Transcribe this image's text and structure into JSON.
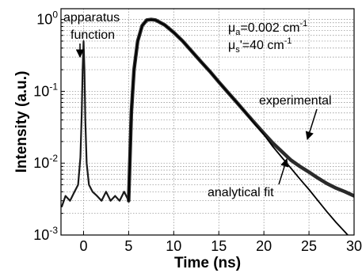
{
  "chart_data": {
    "type": "line",
    "xlabel": "Time (ns)",
    "ylabel": "Intensity (a.u.)",
    "xlim": [
      -2.5,
      30
    ],
    "ylim": [
      0.001,
      1.5
    ],
    "yscale": "log",
    "grid": "dotted",
    "x_ticks": [
      0,
      5,
      10,
      15,
      20,
      25,
      30
    ],
    "x_tick_labels": [
      "0",
      "5",
      "10",
      "15",
      "20",
      "25",
      "30"
    ],
    "y_ticks": [
      0.001,
      0.01,
      0.1,
      1
    ],
    "y_tick_labels": [
      {
        "base": "10",
        "exp": "-3"
      },
      {
        "base": "10",
        "exp": "-2"
      },
      {
        "base": "10",
        "exp": "-1"
      },
      {
        "base": "10",
        "exp": "0"
      }
    ],
    "parameters": {
      "mua": {
        "sym": "μ",
        "sub": "a",
        "text": "=0.002 cm",
        "exp": "-1"
      },
      "mus": {
        "sym": "μ",
        "sub": "s",
        "text": "'=40 cm",
        "exp": "-1"
      }
    },
    "annotations": {
      "apparatus_line1": "apparatus",
      "apparatus_line2": "function",
      "experimental": "experimental",
      "analytical_fit": "analytical fit"
    },
    "series": [
      {
        "role": "apparatus function",
        "x": [
          -2.4,
          -2.0,
          -1.5,
          -1.0,
          -0.6,
          -0.35,
          -0.2,
          -0.1,
          0,
          0.1,
          0.2,
          0.35,
          0.6,
          1.0,
          1.5,
          2.0,
          2.5,
          3.0,
          3.5,
          4.0,
          4.5,
          5.0
        ],
        "y": [
          0.0025,
          0.0035,
          0.003,
          0.004,
          0.005,
          0.012,
          0.05,
          0.2,
          0.5,
          0.2,
          0.04,
          0.01,
          0.005,
          0.004,
          0.0035,
          0.003,
          0.004,
          0.003,
          0.0035,
          0.003,
          0.004,
          0.003
        ]
      },
      {
        "role": "experimental",
        "x": [
          5.0,
          5.3,
          5.6,
          6.0,
          6.5,
          7.0,
          7.5,
          8.0,
          9,
          10,
          11,
          12,
          13,
          14,
          15,
          16,
          17,
          18,
          19,
          20,
          21,
          22,
          23,
          24,
          25,
          26,
          27,
          28,
          29,
          30
        ],
        "y": [
          0.003,
          0.05,
          0.2,
          0.5,
          0.82,
          0.98,
          1.0,
          0.98,
          0.84,
          0.66,
          0.5,
          0.36,
          0.26,
          0.19,
          0.135,
          0.097,
          0.07,
          0.05,
          0.036,
          0.026,
          0.019,
          0.0145,
          0.011,
          0.009,
          0.0075,
          0.0062,
          0.0052,
          0.0045,
          0.004,
          0.0035
        ]
      },
      {
        "role": "analytical fit",
        "x": [
          5.0,
          5.3,
          5.6,
          6.0,
          6.5,
          7.0,
          7.5,
          8.0,
          9,
          10,
          11,
          12,
          13,
          14,
          15,
          16,
          17,
          18,
          19,
          20,
          21,
          22,
          23,
          24,
          25,
          26,
          27,
          28,
          29,
          30
        ],
        "y": [
          0.003,
          0.05,
          0.2,
          0.5,
          0.82,
          0.98,
          1.0,
          0.98,
          0.84,
          0.66,
          0.5,
          0.36,
          0.26,
          0.19,
          0.135,
          0.097,
          0.07,
          0.05,
          0.035,
          0.025,
          0.017,
          0.012,
          0.0085,
          0.006,
          0.0043,
          0.003,
          0.0021,
          0.0015,
          0.0011,
          0.0008
        ]
      }
    ]
  }
}
